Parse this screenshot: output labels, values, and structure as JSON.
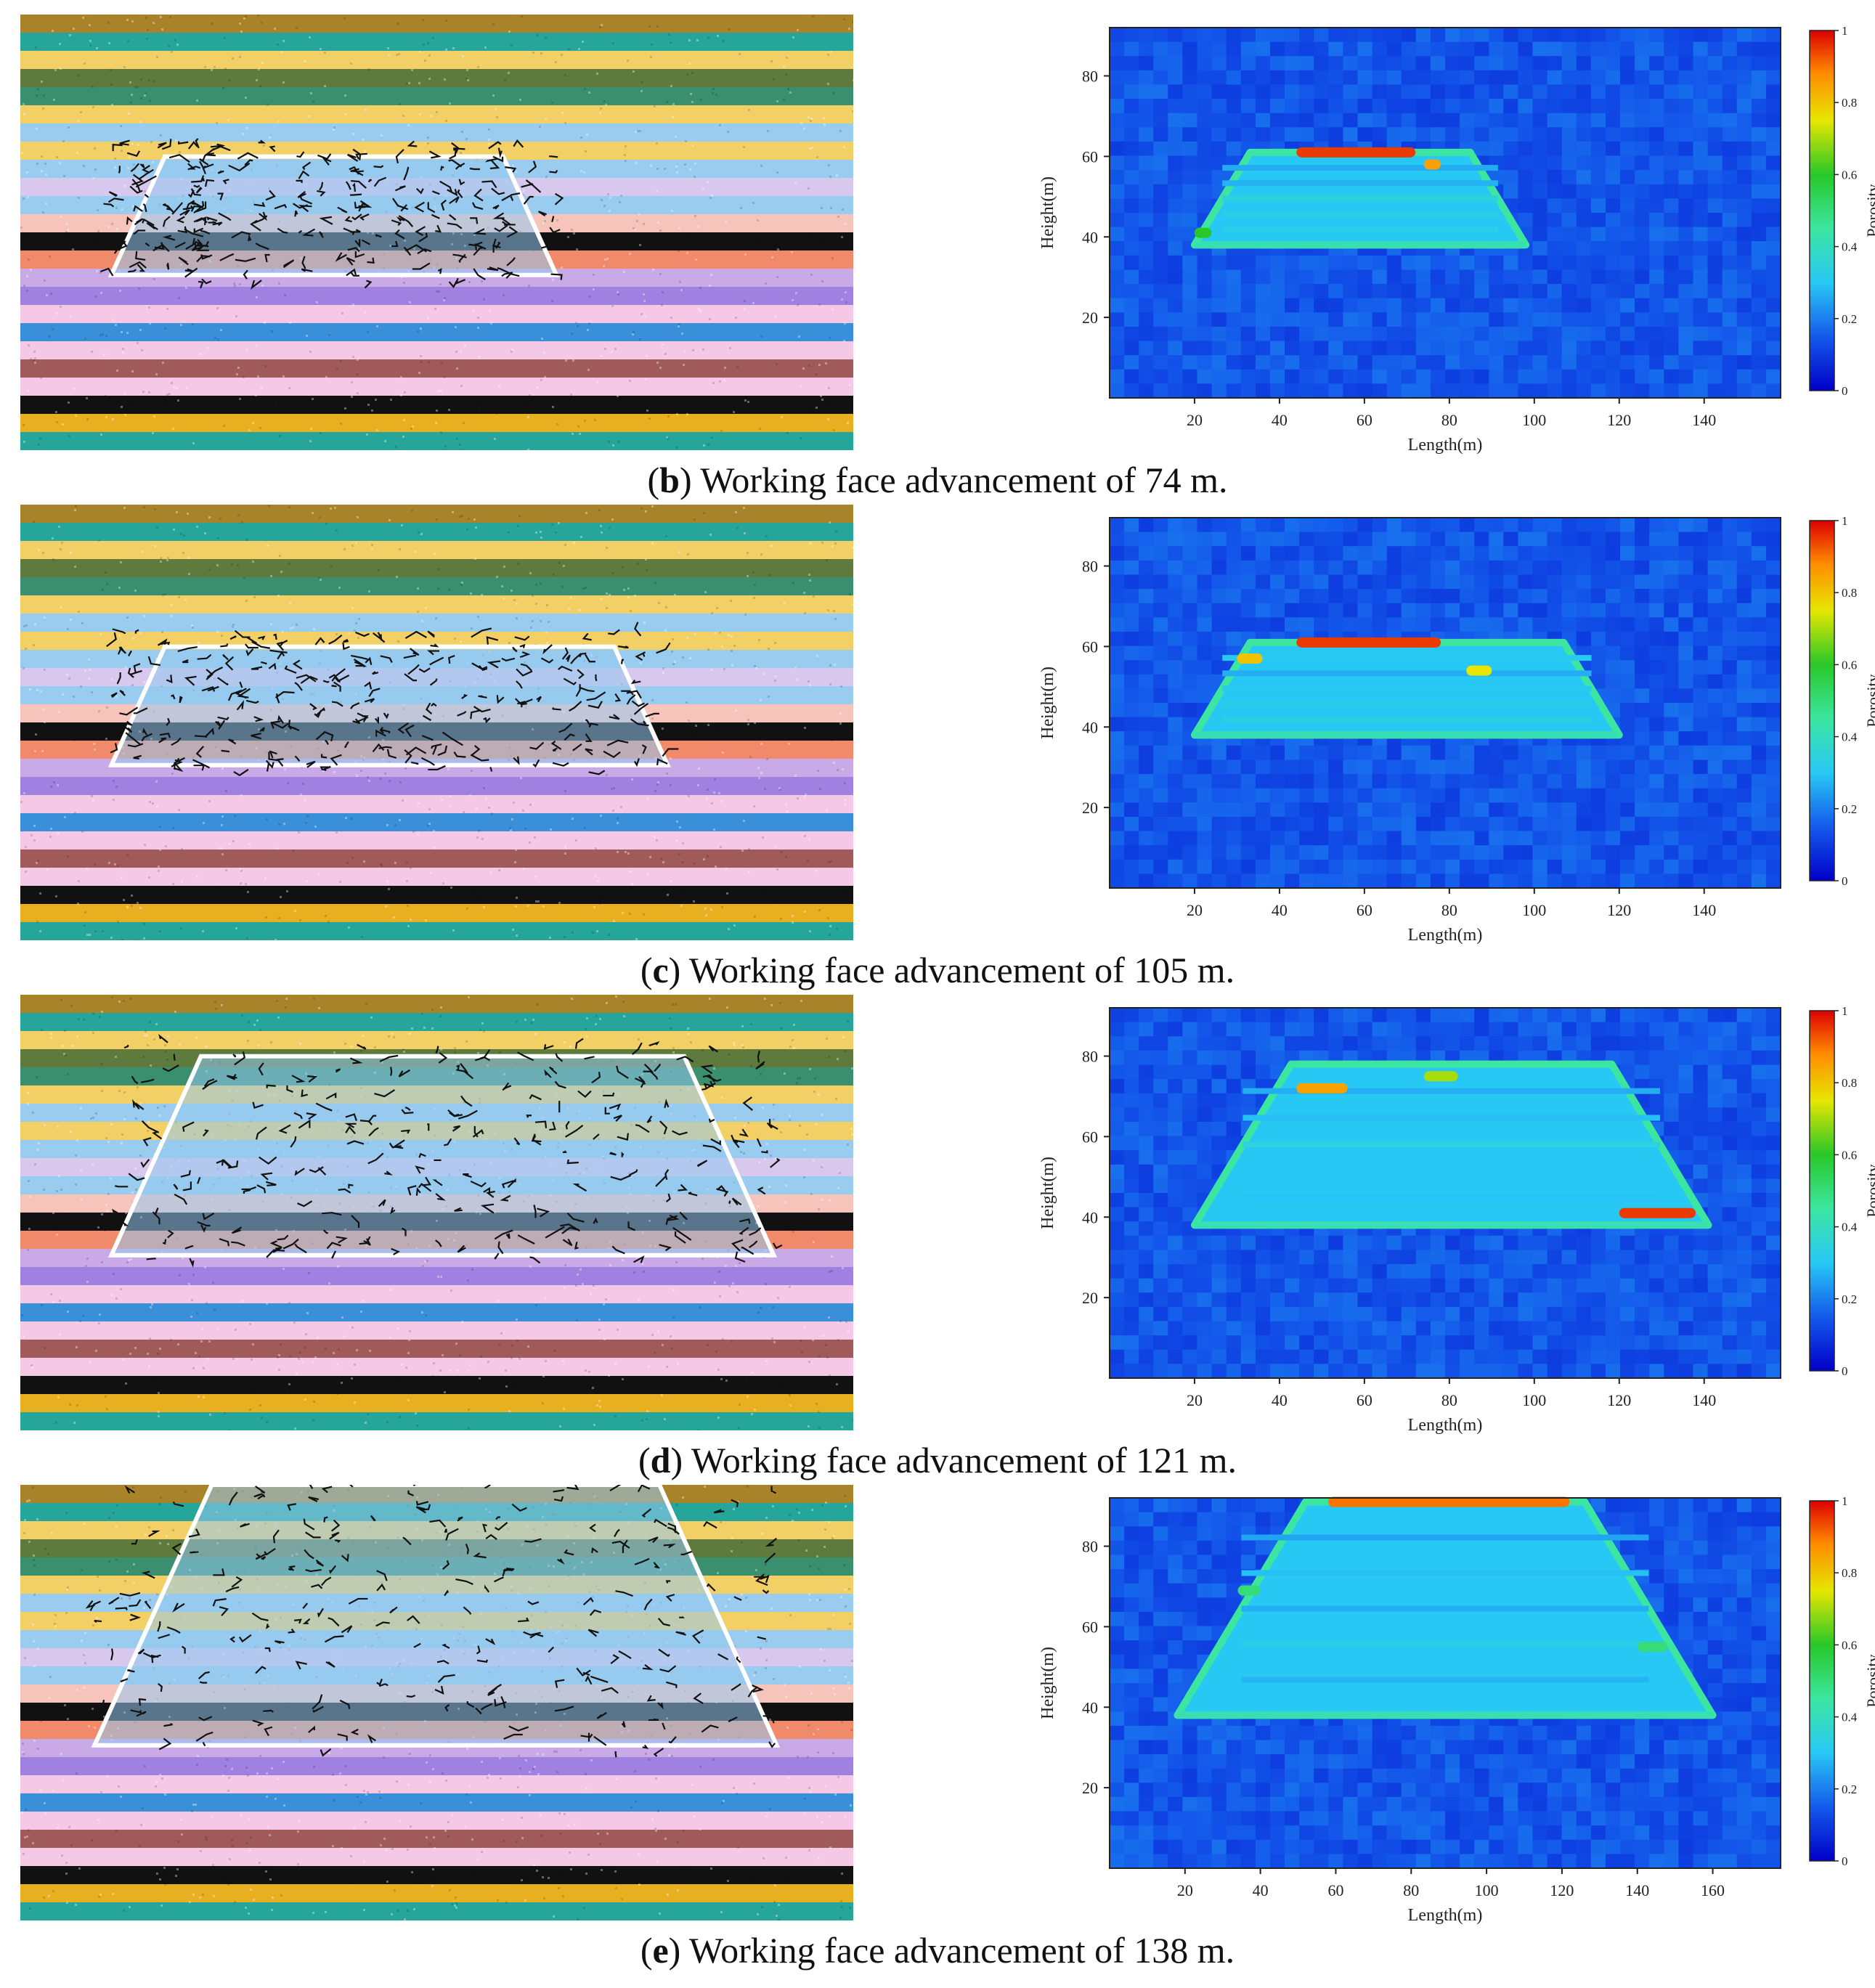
{
  "panels": [
    {
      "letter": "b",
      "caption": "Working face advancement of 74 m.",
      "chart_data": {
        "type": "heatmap",
        "xlabel": "Length(m)",
        "ylabel": "Height(m)",
        "colorbar_label": "Porosity",
        "x_ticks": [
          20,
          40,
          60,
          80,
          100,
          120,
          140
        ],
        "y_ticks": [
          20,
          40,
          60,
          80
        ],
        "colorbar_ticks": [
          "0",
          "0.2",
          "0.4",
          "0.6",
          "0.8",
          "1"
        ],
        "xlim": [
          0,
          158
        ],
        "ylim": [
          0,
          92
        ],
        "goaf_extent": {
          "x_start": 20,
          "x_end": 98,
          "y_base": 38,
          "y_top": 61
        },
        "high_porosity_zones": [
          {
            "x": [
              44,
              72
            ],
            "y": 61,
            "porosity": 0.95
          },
          {
            "x": [
              74,
              78
            ],
            "y": 58,
            "porosity": 0.85
          },
          {
            "x": [
              20,
              24
            ],
            "y": 41,
            "porosity": 0.6
          }
        ]
      }
    },
    {
      "letter": "c",
      "caption": "Working face advancement of 105 m.",
      "chart_data": {
        "type": "heatmap",
        "xlabel": "Length(m)",
        "ylabel": "Height(m)",
        "colorbar_label": "Porosity",
        "x_ticks": [
          20,
          40,
          60,
          80,
          100,
          120,
          140
        ],
        "y_ticks": [
          20,
          40,
          60,
          80
        ],
        "colorbar_ticks": [
          "0",
          "0.2",
          "0.4",
          "0.6",
          "0.8",
          "1"
        ],
        "xlim": [
          0,
          158
        ],
        "ylim": [
          0,
          92
        ],
        "goaf_extent": {
          "x_start": 20,
          "x_end": 120,
          "y_base": 38,
          "y_top": 61
        },
        "high_porosity_zones": [
          {
            "x": [
              44,
              78
            ],
            "y": 61,
            "porosity": 0.95
          },
          {
            "x": [
              30,
              36
            ],
            "y": 57,
            "porosity": 0.8
          },
          {
            "x": [
              84,
              90
            ],
            "y": 54,
            "porosity": 0.75
          }
        ]
      }
    },
    {
      "letter": "d",
      "caption": "Working face advancement of 121 m.",
      "chart_data": {
        "type": "heatmap",
        "xlabel": "Length(m)",
        "ylabel": "Height(m)",
        "colorbar_label": "Porosity",
        "x_ticks": [
          20,
          40,
          60,
          80,
          100,
          120,
          140
        ],
        "y_ticks": [
          20,
          40,
          60,
          80
        ],
        "colorbar_ticks": [
          "0",
          "0.2",
          "0.4",
          "0.6",
          "0.8",
          "1"
        ],
        "xlim": [
          0,
          158
        ],
        "ylim": [
          0,
          92
        ],
        "goaf_extent": {
          "x_start": 20,
          "x_end": 141,
          "y_base": 38,
          "y_top": 78
        },
        "high_porosity_zones": [
          {
            "x": [
              44,
              56
            ],
            "y": 72,
            "porosity": 0.85
          },
          {
            "x": [
              74,
              82
            ],
            "y": 75,
            "porosity": 0.7
          },
          {
            "x": [
              120,
              138
            ],
            "y": 41,
            "porosity": 0.95
          }
        ]
      }
    },
    {
      "letter": "e",
      "caption": "Working face advancement of 138 m.",
      "chart_data": {
        "type": "heatmap",
        "xlabel": "Length(m)",
        "ylabel": "Height(m)",
        "colorbar_label": "Porosity",
        "x_ticks": [
          20,
          40,
          60,
          80,
          100,
          120,
          140,
          160
        ],
        "y_ticks": [
          20,
          40,
          60,
          80
        ],
        "colorbar_ticks": [
          "0",
          "0.2",
          "0.4",
          "0.6",
          "0.8",
          "1"
        ],
        "xlim": [
          0,
          178
        ],
        "ylim": [
          0,
          92
        ],
        "goaf_extent": {
          "x_start": 18,
          "x_end": 160,
          "y_base": 38,
          "y_top": 91
        },
        "high_porosity_zones": [
          {
            "x": [
              58,
              122
            ],
            "y": 91,
            "porosity": 0.9
          },
          {
            "x": [
              34,
              40
            ],
            "y": 69,
            "porosity": 0.5
          },
          {
            "x": [
              140,
              148
            ],
            "y": 55,
            "porosity": 0.5
          }
        ]
      }
    }
  ],
  "colors": {
    "background_porosity": "#1e5ae0",
    "goaf_fill": "#58d0f0",
    "fracture": "#111111"
  }
}
